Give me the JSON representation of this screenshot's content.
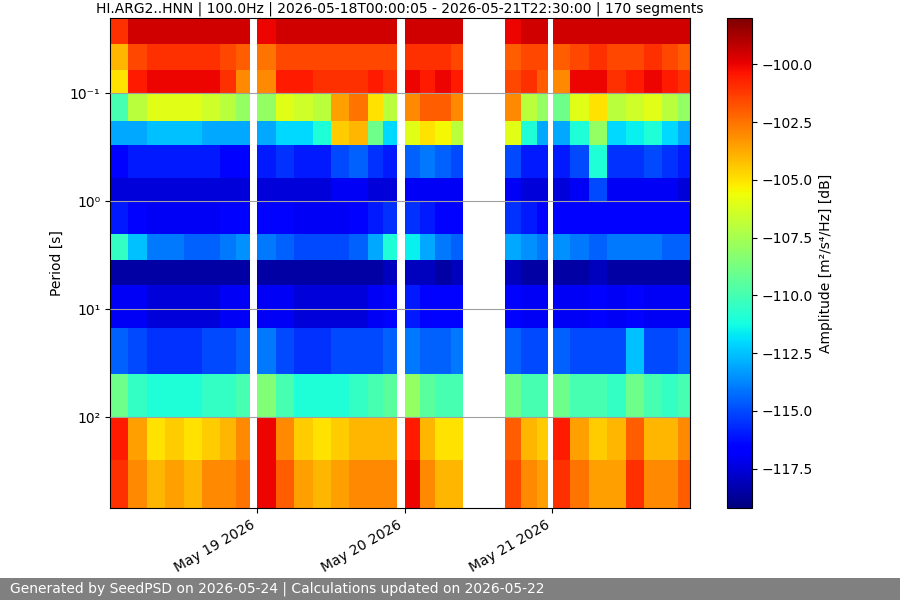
{
  "chart_data": {
    "type": "heatmap",
    "title": "HI.ARG2..HNN | 100.0Hz | 2026-05-18T00:00:05 - 2026-05-21T22:30:00 | 170 segments",
    "y_label": "Period [s]",
    "footer": "Generated by SeedPSD on 2026-05-24 | Calculations updated on 2026-05-22",
    "log": "y",
    "grid": "y",
    "xlim": [
      "2026-05-18T00:00:05",
      "2026-05-21T22:30:00"
    ],
    "xticks": [
      {
        "value": "2026-05-19T00:00:00",
        "label": "May 19 2026"
      },
      {
        "value": "2026-05-20T00:00:00",
        "label": "May 20 2026"
      },
      {
        "value": "2026-05-21T00:00:00",
        "label": "May 21 2026"
      }
    ],
    "ylim": [
      690,
      0.02
    ],
    "yticks": [
      {
        "value": 0.1,
        "label": "10⁻¹"
      },
      {
        "value": 1,
        "label": "10⁰"
      },
      {
        "value": 10,
        "label": "10¹"
      },
      {
        "value": 100,
        "label": "10²"
      }
    ],
    "time_edges": [
      "2026-05-18T00:00:05",
      "2026-05-18T03:00:00",
      "2026-05-18T06:00:00",
      "2026-05-18T09:00:00",
      "2026-05-18T12:00:00",
      "2026-05-18T15:00:00",
      "2026-05-18T18:00:00",
      "2026-05-18T20:30:00",
      "2026-05-18T22:48:00",
      "2026-05-19T00:00:00",
      "2026-05-19T03:00:00",
      "2026-05-19T06:00:00",
      "2026-05-19T09:00:00",
      "2026-05-19T12:00:00",
      "2026-05-19T15:00:00",
      "2026-05-19T18:00:00",
      "2026-05-19T20:30:00",
      "2026-05-19T22:42:00",
      "2026-05-20T00:00:00",
      "2026-05-20T02:30:00",
      "2026-05-20T05:00:00",
      "2026-05-20T07:30:00",
      "2026-05-20T09:30:00",
      "2026-05-20T16:24:00",
      "2026-05-20T19:00:00",
      "2026-05-20T21:30:00",
      "2026-05-20T23:24:00",
      "2026-05-21T00:06:00",
      "2026-05-21T03:00:00",
      "2026-05-21T06:00:00",
      "2026-05-21T09:00:00",
      "2026-05-21T12:00:00",
      "2026-05-21T15:00:00",
      "2026-05-21T18:00:00",
      "2026-05-21T20:30:00",
      "2026-05-21T22:30:00"
    ],
    "period_edges": [
      0.02,
      0.035,
      0.06,
      0.1,
      0.18,
      0.3,
      0.6,
      1,
      2,
      3.5,
      6,
      15,
      40,
      100,
      250,
      690
    ],
    "cells": [
      [
        -101,
        -99.5,
        -99.5,
        -99.5,
        -99.5,
        -99.5,
        -99.5,
        -99.5,
        null,
        -100,
        -99.5,
        -99.5,
        -99.5,
        -99.5,
        -99.5,
        -99.5,
        -99.5,
        null,
        -99.5,
        -99.5,
        -99.5,
        -99.5,
        null,
        -100,
        -99.5,
        -99.5,
        null,
        -99.5,
        -99.5,
        -99.5,
        -99.5,
        -99.5,
        -99.5,
        -99.5,
        -99.5
      ],
      [
        -104,
        -101.5,
        -101,
        -101,
        -101,
        -101,
        -101.5,
        -102,
        null,
        -102.5,
        -101.5,
        -101.5,
        -101.5,
        -101.5,
        -101.5,
        -101.5,
        -101.5,
        null,
        -101,
        -101,
        -101,
        -101.5,
        null,
        -102,
        -101.5,
        -101.5,
        null,
        -102,
        -101.5,
        -101,
        -101.5,
        -101.5,
        -101,
        -101.5,
        -102
      ],
      [
        -105,
        -100.5,
        -100,
        -100,
        -100,
        -100,
        -101,
        -103,
        null,
        -103,
        -100.5,
        -100.5,
        -101,
        -101,
        -101,
        -100.5,
        -101,
        null,
        -100,
        -100.5,
        -100,
        -100.5,
        null,
        -101.5,
        -101,
        -102,
        null,
        -103,
        -100,
        -100,
        -101,
        -100.5,
        -100,
        -100.5,
        -101
      ],
      [
        -110,
        -107,
        -106,
        -106,
        -106,
        -106.5,
        -107,
        -108,
        null,
        -108,
        -106,
        -106.5,
        -107,
        -103.5,
        -102.5,
        -105,
        -107,
        null,
        -103,
        -102,
        -102,
        -103,
        null,
        -103,
        -107,
        -108,
        null,
        -109,
        -106,
        -105,
        -107,
        -106.5,
        -106,
        -107,
        -108
      ],
      [
        -113,
        -113,
        -112.5,
        -112.5,
        -112.5,
        -113,
        -113,
        -113,
        null,
        -113,
        -112,
        -112,
        -111,
        -104.5,
        -104,
        -109,
        -112,
        null,
        -106,
        -105,
        -105.5,
        -107,
        null,
        -106,
        -111,
        -113,
        null,
        -113,
        -111,
        -108,
        -112,
        -111.5,
        -111,
        -112,
        -113
      ],
      [
        -116.5,
        -116,
        -116,
        -116,
        -116,
        -116,
        -116.5,
        -116.5,
        null,
        -116,
        -115.5,
        -116,
        -116,
        -115,
        -114.5,
        -115.5,
        -116,
        null,
        -114.5,
        -114,
        -114.5,
        -115,
        null,
        -115,
        -116,
        -116,
        null,
        -116,
        -115,
        -111,
        -115.5,
        -115.5,
        -115,
        -115.5,
        -116
      ],
      [
        -117.5,
        -117.5,
        -117.5,
        -117.5,
        -117.5,
        -117.5,
        -117.5,
        -117.5,
        null,
        -117.5,
        -117.5,
        -117.5,
        -117.5,
        -117,
        -117,
        -117.5,
        -117.5,
        null,
        -117,
        -117,
        -117,
        -117,
        null,
        -117,
        -117.5,
        -117.5,
        null,
        -117.5,
        -117,
        -115,
        -117,
        -117,
        -117,
        -117,
        -117.5
      ],
      [
        -116,
        -116.5,
        -117,
        -117,
        -117,
        -117,
        -116.5,
        -116.5,
        null,
        -116.5,
        -116.5,
        -117,
        -117,
        -117,
        -116.5,
        -116,
        -115.5,
        null,
        -115.5,
        -116,
        -116.5,
        -116.5,
        null,
        -115.5,
        -116,
        -116.5,
        null,
        -116.5,
        -116.5,
        -116.5,
        -116.5,
        -116.5,
        -116.5,
        -116.5,
        -116.5
      ],
      [
        -110.5,
        -112.5,
        -114,
        -114,
        -114.5,
        -114.5,
        -114,
        -113.5,
        null,
        -114,
        -114.5,
        -115,
        -115,
        -115,
        -114.5,
        -113,
        -111,
        null,
        -111.5,
        -113,
        -114,
        -114.5,
        null,
        -113,
        -113.5,
        -114,
        null,
        -113.5,
        -114,
        -114.5,
        -114,
        -114,
        -114,
        -114.5,
        -114.5
      ],
      [
        -118.5,
        -118.5,
        -118.5,
        -118.5,
        -118.5,
        -118.5,
        -118.5,
        -118.5,
        null,
        -118.5,
        -118.5,
        -118.5,
        -118.5,
        -118.5,
        -118.5,
        -118.5,
        -118,
        null,
        -118,
        -118,
        -118.5,
        -118,
        null,
        -118,
        -118.5,
        -118.5,
        null,
        -118.5,
        -118.5,
        -118,
        -118.5,
        -118.5,
        -118.5,
        -118.5,
        -118.5
      ],
      [
        -117,
        -117,
        -117.5,
        -117.5,
        -117.5,
        -117.5,
        -117,
        -117,
        null,
        -117,
        -117,
        -117.5,
        -117.5,
        -117.5,
        -117.5,
        -117,
        -116.5,
        null,
        -116,
        -116.5,
        -116.5,
        -116.5,
        null,
        -116.5,
        -117,
        -117,
        null,
        -117,
        -117,
        -116.5,
        -117,
        -116.5,
        -117,
        -117,
        -117
      ],
      [
        -114.5,
        -115,
        -115.5,
        -115.5,
        -115.5,
        -115,
        -115,
        -114.5,
        null,
        -114,
        -115,
        -115.5,
        -115.5,
        -115,
        -115,
        -115,
        -114.5,
        null,
        -114,
        -114.5,
        -114.5,
        -114,
        null,
        -114.5,
        -115,
        -115,
        null,
        -114.5,
        -115,
        -115,
        -115,
        -112.5,
        -115,
        -115,
        -114.5
      ],
      [
        -109,
        -110.5,
        -111,
        -111,
        -111,
        -110.5,
        -110.5,
        -110,
        null,
        -108.5,
        -110,
        -111,
        -111,
        -111,
        -110.5,
        -110,
        -109.5,
        null,
        -108,
        -109.5,
        -110,
        -110,
        null,
        -109,
        -110,
        -110,
        null,
        -109,
        -110,
        -110,
        -110.5,
        -109,
        -110,
        -110.5,
        -110
      ],
      [
        -100.5,
        -103.5,
        -105,
        -104.5,
        -105,
        -104.5,
        -104,
        -103,
        null,
        -100,
        -103,
        -104.5,
        -105,
        -104.5,
        -104,
        -104,
        -104,
        null,
        -100.5,
        -104,
        -105,
        -105,
        null,
        -102,
        -104,
        -104.5,
        null,
        -100.5,
        -103.5,
        -104.5,
        -104,
        -102,
        -104,
        -104,
        -103
      ],
      [
        -101,
        -103,
        -104,
        -103.5,
        -104,
        -103,
        -103,
        -102.5,
        null,
        -100,
        -102,
        -103.5,
        -104,
        -103.5,
        -103,
        -103,
        -103,
        null,
        -100,
        -103,
        -104,
        -104,
        null,
        -101.5,
        -103,
        -103.5,
        null,
        -101,
        -102.5,
        -103.5,
        -103.5,
        -101,
        -103,
        -103,
        -102
      ]
    ],
    "colorbar": {
      "label": "Amplitude [m²/s⁴/Hz] [dB]",
      "lim": [
        -119.2,
        -98
      ],
      "ticks": [
        {
          "value": -100,
          "label": "−100.0"
        },
        {
          "value": -102.5,
          "label": "−102.5"
        },
        {
          "value": -105,
          "label": "−105.0"
        },
        {
          "value": -107.5,
          "label": "−107.5"
        },
        {
          "value": -110,
          "label": "−110.0"
        },
        {
          "value": -112.5,
          "label": "−112.5"
        },
        {
          "value": -115,
          "label": "−115.0"
        },
        {
          "value": -117.5,
          "label": "−117.5"
        }
      ]
    }
  }
}
